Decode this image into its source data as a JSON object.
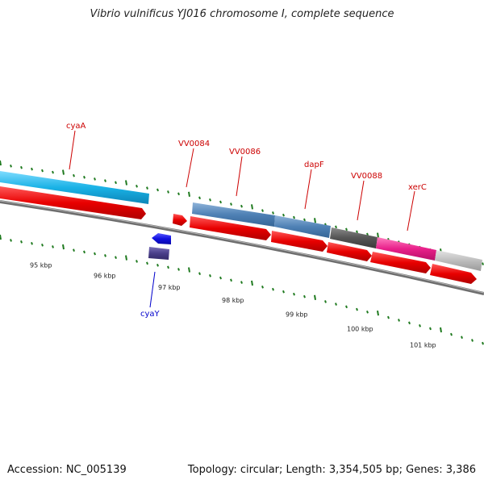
{
  "title": "Vibrio vulnificus YJ016 chromosome I, complete sequence",
  "footer": {
    "accession": "Accession: NC_005139",
    "summary": "Topology: circular; Length: 3,354,505 bp; Genes: 3,386"
  },
  "scale": {
    "tick_labels": [
      "95 kbp",
      "96 kbp",
      "97 kbp",
      "98 kbp",
      "99 kbp",
      "100 kbp",
      "101 kbp"
    ]
  },
  "features": {
    "top_strand": [
      {
        "label": "cyaA",
        "label_color": "#cc0000",
        "color": "#1ab2e6"
      },
      {
        "label": "VV0084",
        "label_color": "#cc0000",
        "color": "#e80000"
      },
      {
        "label": "VV0086",
        "label_color": "#cc0000",
        "color": "#4f81b5"
      },
      {
        "label": "dapF",
        "label_color": "#cc0000",
        "color": "#4f81b5"
      },
      {
        "label": "VV0088",
        "label_color": "#cc0000",
        "color": "#555555"
      },
      {
        "label": "xerC",
        "label_color": "#cc0000",
        "color": "#e8208a"
      }
    ],
    "bottom_strand": [
      {
        "label": "cyaY",
        "label_color": "#0000cc",
        "color": "#1010e0"
      }
    ]
  },
  "colors": {
    "tick": "#1f7a1f",
    "backbone": "#777777",
    "cds": "#e80000",
    "label_top": "#cc0000",
    "label_bottom": "#0000cc",
    "gray_gene": "#bdbdbd"
  }
}
